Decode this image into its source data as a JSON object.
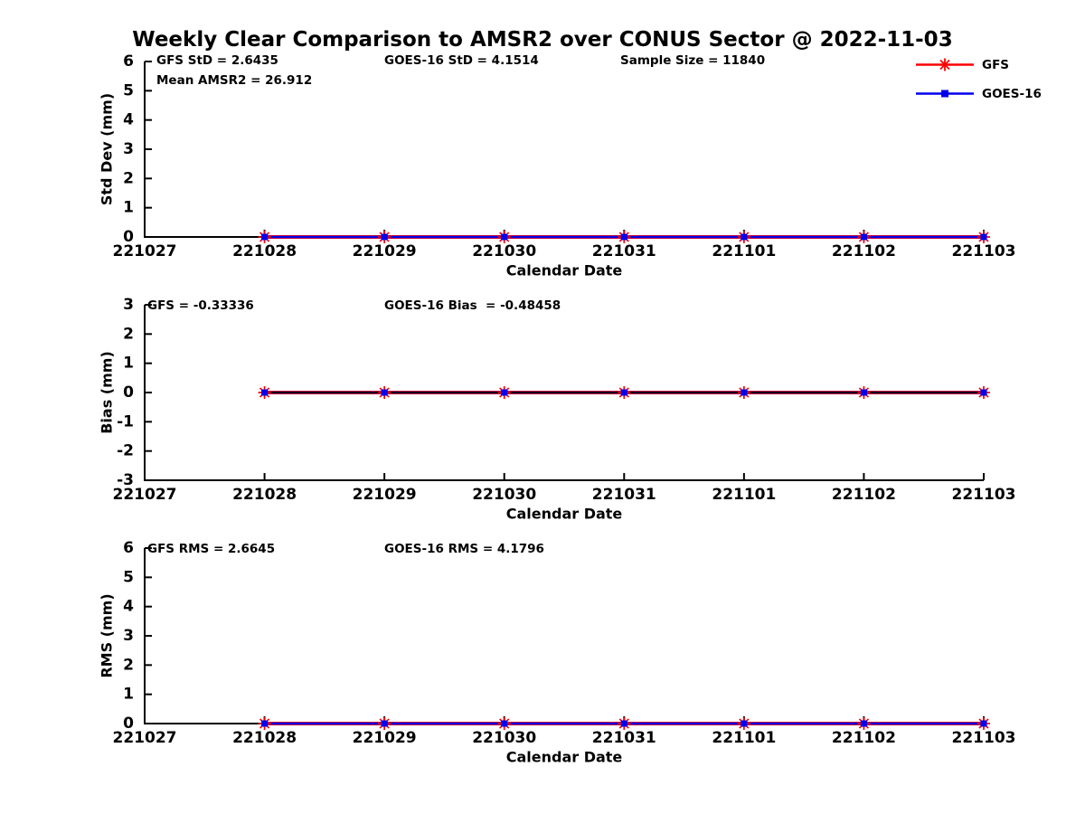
{
  "title": "Weekly Clear Comparison to AMSR2 over CONUS Sector @ 2022-11-03",
  "colors": {
    "gfs": "#ff0000",
    "goes16": "#0000ee",
    "axis": "#000000",
    "bias_overlay_line": "#000000",
    "text": "#000000",
    "background": "#ffffff"
  },
  "legend": {
    "items": [
      {
        "label": "GFS",
        "color": "#ff0000",
        "marker": "asterisk"
      },
      {
        "label": "GOES-16",
        "color": "#0000ee",
        "marker": "square"
      }
    ]
  },
  "stats": {
    "gfs_std": 2.6435,
    "goes16_std": 4.1514,
    "sample_size": 11840,
    "mean_amsr2": 26.912,
    "gfs_bias": -0.33336,
    "goes16_bias": -0.48458,
    "gfs_rms": 2.6645,
    "goes16_rms": 4.1796
  },
  "chart_data": [
    {
      "type": "line",
      "name": "stddev",
      "ylabel": "Std Dev (mm)",
      "xlabel": "Calendar Date",
      "ylim": [
        0,
        6
      ],
      "yticks": [
        "0",
        "1",
        "2",
        "3",
        "4",
        "5",
        "6"
      ],
      "ytick_values": [
        0,
        1,
        2,
        3,
        4,
        5,
        6
      ],
      "x_ticks": [
        "221027",
        "221028",
        "221029",
        "221030",
        "221031",
        "221101",
        "221102",
        "221103"
      ],
      "x": [
        "221028",
        "221029",
        "221030",
        "221031",
        "221101",
        "221102",
        "221103"
      ],
      "series": [
        {
          "name": "GFS",
          "color": "#ff0000",
          "values": [
            0,
            0,
            0,
            0,
            0,
            0,
            0
          ]
        },
        {
          "name": "GOES-16",
          "color": "#0000ee",
          "values": [
            0,
            0,
            0,
            0,
            0,
            0,
            0
          ]
        }
      ],
      "annotations": [
        "GFS StD = 2.6435",
        "Mean AMSR2 = 26.912",
        "GOES-16 StD = 4.1514",
        "Sample Size = 11840"
      ],
      "grid": false,
      "legend_position": "outside-top-right",
      "overlay_black_line": false
    },
    {
      "type": "line",
      "name": "bias",
      "ylabel": "Bias (mm)",
      "xlabel": "Calendar Date",
      "ylim": [
        -3,
        3
      ],
      "yticks": [
        "-3",
        "-2",
        "-1",
        "0",
        "1",
        "2",
        "3"
      ],
      "ytick_values": [
        -3,
        -2,
        -1,
        0,
        1,
        2,
        3
      ],
      "x_ticks": [
        "221027",
        "221028",
        "221029",
        "221030",
        "221031",
        "221101",
        "221102",
        "221103"
      ],
      "x": [
        "221028",
        "221029",
        "221030",
        "221031",
        "221101",
        "221102",
        "221103"
      ],
      "series": [
        {
          "name": "GFS",
          "color": "#ff0000",
          "values": [
            0,
            0,
            0,
            0,
            0,
            0,
            0
          ]
        },
        {
          "name": "GOES-16",
          "color": "#0000ee",
          "values": [
            0,
            0,
            0,
            0,
            0,
            0,
            0
          ]
        }
      ],
      "annotations": [
        "GFS = -0.33336",
        "GOES-16 Bias  = -0.48458"
      ],
      "grid": false,
      "legend_position": "none",
      "overlay_black_line": true
    },
    {
      "type": "line",
      "name": "rms",
      "ylabel": "RMS (mm)",
      "xlabel": "Calendar Date",
      "ylim": [
        0,
        6
      ],
      "yticks": [
        "0",
        "1",
        "2",
        "3",
        "4",
        "5",
        "6"
      ],
      "ytick_values": [
        0,
        1,
        2,
        3,
        4,
        5,
        6
      ],
      "x_ticks": [
        "221027",
        "221028",
        "221029",
        "221030",
        "221031",
        "221101",
        "221102",
        "221103"
      ],
      "x": [
        "221028",
        "221029",
        "221030",
        "221031",
        "221101",
        "221102",
        "221103"
      ],
      "series": [
        {
          "name": "GFS",
          "color": "#ff0000",
          "values": [
            0,
            0,
            0,
            0,
            0,
            0,
            0
          ]
        },
        {
          "name": "GOES-16",
          "color": "#0000ee",
          "values": [
            0,
            0,
            0,
            0,
            0,
            0,
            0
          ]
        }
      ],
      "annotations": [
        "GFS RMS = 2.6645",
        "GOES-16 RMS = 4.1796"
      ],
      "grid": false,
      "legend_position": "none",
      "overlay_black_line": false
    }
  ]
}
